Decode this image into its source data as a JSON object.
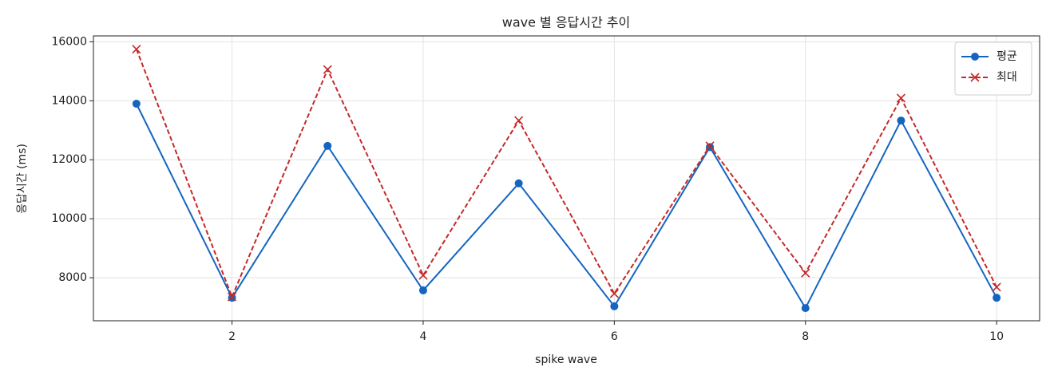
{
  "chart_data": {
    "type": "line",
    "title": "wave 별 응답시간 추이",
    "xlabel": "spike wave",
    "ylabel": "응답시간 (ms)",
    "x": [
      1,
      2,
      3,
      4,
      5,
      6,
      7,
      8,
      9,
      10
    ],
    "series": [
      {
        "name": "평균",
        "color": "#1565c0",
        "marker": "o",
        "linestyle": "solid",
        "values": [
          13900,
          7320,
          12470,
          7570,
          11200,
          7030,
          12430,
          6970,
          13330,
          7320
        ]
      },
      {
        "name": "최대",
        "color": "#c62828",
        "marker": "x",
        "linestyle": "dashed",
        "values": [
          15750,
          7350,
          15060,
          8080,
          13330,
          7460,
          12470,
          8160,
          14090,
          7680
        ]
      }
    ],
    "xlim": [
      0.55,
      10.45
    ],
    "xticks": [
      2,
      4,
      6,
      8,
      10
    ],
    "ylim": [
      6540,
      16200
    ],
    "yticks": [
      8000,
      10000,
      12000,
      14000,
      16000
    ],
    "grid": true,
    "legend": "upper right"
  }
}
